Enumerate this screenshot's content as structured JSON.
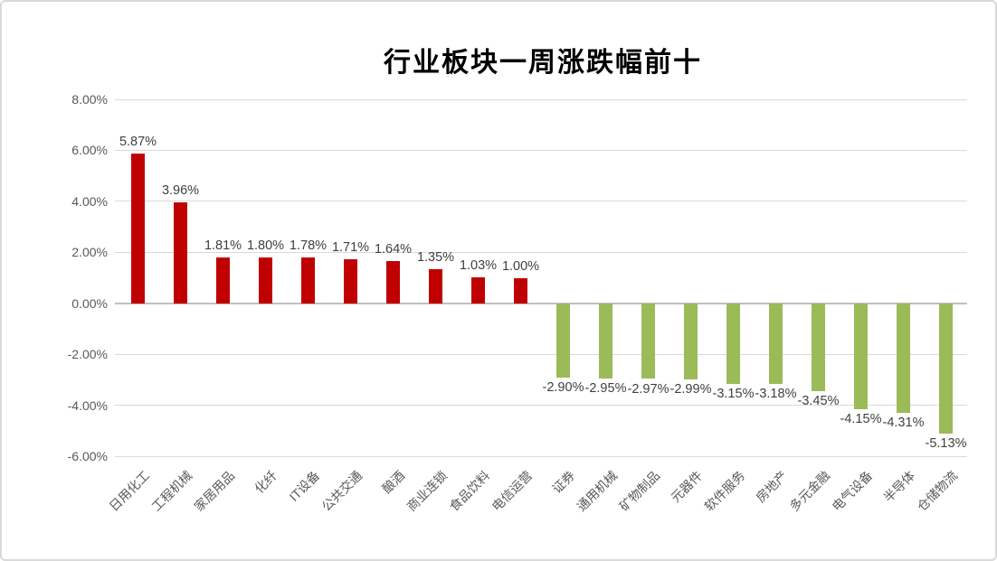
{
  "chart_data": {
    "type": "bar",
    "title": "行业板块一周涨跌幅前十",
    "categories": [
      "日用化工",
      "工程机械",
      "家居用品",
      "化纤",
      "IT设备",
      "公共交通",
      "酿酒",
      "商业连锁",
      "食品饮料",
      "电信运营",
      "证券",
      "通用机械",
      "矿物制品",
      "元器件",
      "软件服务",
      "房地产",
      "多元金融",
      "电气设备",
      "半导体",
      "仓储物流"
    ],
    "values": [
      5.87,
      3.96,
      1.81,
      1.8,
      1.78,
      1.71,
      1.64,
      1.35,
      1.03,
      1.0,
      -2.9,
      -2.95,
      -2.97,
      -2.99,
      -3.15,
      -3.18,
      -3.45,
      -4.15,
      -4.31,
      -5.13
    ],
    "data_labels": [
      "5.87%",
      "3.96%",
      "1.81%",
      "1.80%",
      "1.78%",
      "1.71%",
      "1.64%",
      "1.35%",
      "1.03%",
      "1.00%",
      "-2.90%",
      "-2.95%",
      "-2.97%",
      "-2.99%",
      "-3.15%",
      "-3.18%",
      "-3.45%",
      "-4.15%",
      "-4.31%",
      "-5.13%"
    ],
    "y_ticks": [
      "8.00%",
      "6.00%",
      "4.00%",
      "2.00%",
      "0.00%",
      "-2.00%",
      "-4.00%",
      "-6.00%"
    ],
    "ylim": [
      -6,
      8
    ],
    "y_tick_step": 2,
    "xlabel": "",
    "ylabel": "",
    "grid": true,
    "legend": "none",
    "colors": {
      "positive_bar": "#C00000",
      "negative_bar": "#9BBB59",
      "axis_text": "#595959",
      "data_label_text": "#404040",
      "gridline": "#D9D9D9",
      "zero_axis_line": "#BFBFBF",
      "border": "#D9D9D9",
      "title": "#000000",
      "background": "#FFFFFF"
    }
  }
}
